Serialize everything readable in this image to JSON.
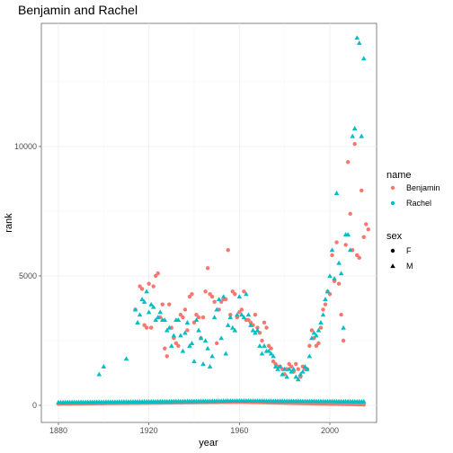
{
  "chart_data": {
    "type": "scatter",
    "title": "Benjamin and Rachel",
    "xlabel": "year",
    "ylabel": "rank",
    "xlim": [
      1873,
      1908
    ],
    "ylim": [
      -700,
      14500
    ],
    "x_ticks": [
      1880,
      1920,
      1960,
      2000
    ],
    "y_ticks": [
      0,
      5000,
      10000
    ],
    "grid": true,
    "colors": {
      "Benjamin": "#F8766D",
      "Rachel": "#00BFC4"
    },
    "legend_placement": "right",
    "legend": {
      "color_title": "name",
      "color_entries": [
        "Benjamin",
        "Rachel"
      ],
      "shape_title": "sex",
      "shape_entries": [
        {
          "label": "F",
          "shape": "circle"
        },
        {
          "label": "M",
          "shape": "triangle"
        }
      ]
    },
    "baseline_series": [
      {
        "name": "Benjamin",
        "sex": "F",
        "shape": "circle",
        "range": [
          1880,
          2015
        ],
        "rank_start": 60,
        "rank_peak": 130,
        "rank_end": 30
      },
      {
        "name": "Rachel",
        "sex": "M",
        "shape": "triangle",
        "range": [
          1880,
          2015
        ],
        "rank_start": 120,
        "rank_peak": 180,
        "rank_end": 150
      }
    ],
    "series": [
      {
        "name": "Benjamin",
        "sex": "M",
        "shape": "circle",
        "points": [
          [
            1914,
            3700
          ],
          [
            1916,
            4600
          ],
          [
            1917,
            4500
          ],
          [
            1918,
            3100
          ],
          [
            1919,
            3000
          ],
          [
            1920,
            4700
          ],
          [
            1921,
            3000
          ],
          [
            1922,
            4600
          ],
          [
            1923,
            5000
          ],
          [
            1924,
            5100
          ],
          [
            1925,
            3400
          ],
          [
            1926,
            3900
          ],
          [
            1927,
            2200
          ],
          [
            1928,
            1900
          ],
          [
            1929,
            3900
          ],
          [
            1930,
            3000
          ],
          [
            1931,
            2600
          ],
          [
            1932,
            2400
          ],
          [
            1933,
            2300
          ],
          [
            1934,
            3500
          ],
          [
            1935,
            3400
          ],
          [
            1936,
            3700
          ],
          [
            1937,
            2900
          ],
          [
            1938,
            4200
          ],
          [
            1939,
            4300
          ],
          [
            1940,
            3200
          ],
          [
            1941,
            3500
          ],
          [
            1942,
            3400
          ],
          [
            1943,
            2600
          ],
          [
            1944,
            3400
          ],
          [
            1945,
            4400
          ],
          [
            1946,
            5300
          ],
          [
            1947,
            4300
          ],
          [
            1948,
            4200
          ],
          [
            1949,
            4000
          ],
          [
            1950,
            2400
          ],
          [
            1951,
            3700
          ],
          [
            1952,
            4000
          ],
          [
            1953,
            4100
          ],
          [
            1954,
            4100
          ],
          [
            1955,
            6000
          ],
          [
            1956,
            3500
          ],
          [
            1957,
            4400
          ],
          [
            1958,
            4300
          ],
          [
            1959,
            3400
          ],
          [
            1960,
            3600
          ],
          [
            1961,
            3700
          ],
          [
            1962,
            4400
          ],
          [
            1963,
            3300
          ],
          [
            1964,
            3300
          ],
          [
            1965,
            3200
          ],
          [
            1966,
            3100
          ],
          [
            1967,
            3500
          ],
          [
            1968,
            3000
          ],
          [
            1969,
            2800
          ],
          [
            1970,
            2500
          ],
          [
            1971,
            3200
          ],
          [
            1972,
            3000
          ],
          [
            1973,
            2300
          ],
          [
            1974,
            2200
          ],
          [
            1975,
            1700
          ],
          [
            1976,
            1600
          ],
          [
            1977,
            1500
          ],
          [
            1978,
            1500
          ],
          [
            1979,
            1400
          ],
          [
            1980,
            1200
          ],
          [
            1981,
            1400
          ],
          [
            1982,
            1600
          ],
          [
            1983,
            1500
          ],
          [
            1984,
            1300
          ],
          [
            1985,
            1600
          ],
          [
            1986,
            1400
          ],
          [
            1987,
            1100
          ],
          [
            1988,
            1500
          ],
          [
            1989,
            1400
          ],
          [
            1990,
            1400
          ],
          [
            1991,
            2300
          ],
          [
            1992,
            2900
          ],
          [
            1993,
            2600
          ],
          [
            1994,
            2300
          ],
          [
            1995,
            2400
          ],
          [
            1996,
            3000
          ],
          [
            1997,
            3700
          ],
          [
            1998,
            3900
          ],
          [
            1999,
            4400
          ],
          [
            2000,
            4300
          ],
          [
            2001,
            5800
          ],
          [
            2002,
            4800
          ],
          [
            2003,
            6300
          ],
          [
            2004,
            4700
          ],
          [
            2005,
            3500
          ],
          [
            2006,
            2500
          ],
          [
            2007,
            6200
          ],
          [
            2008,
            9400
          ],
          [
            2009,
            7400
          ],
          [
            2010,
            6000
          ],
          [
            2011,
            10100
          ],
          [
            2012,
            5800
          ],
          [
            2013,
            5700
          ],
          [
            2014,
            8300
          ],
          [
            2015,
            6500
          ],
          [
            2016,
            7000
          ],
          [
            2017,
            6800
          ]
        ]
      },
      {
        "name": "Rachel",
        "sex": "M",
        "shape": "triangle",
        "points": [
          [
            1898,
            1200
          ],
          [
            1900,
            1500
          ],
          [
            1910,
            1800
          ],
          [
            1914,
            3700
          ],
          [
            1915,
            3200
          ],
          [
            1916,
            3500
          ],
          [
            1917,
            4100
          ],
          [
            1918,
            4000
          ],
          [
            1919,
            4400
          ],
          [
            1920,
            3600
          ],
          [
            1921,
            3900
          ],
          [
            1922,
            3800
          ],
          [
            1923,
            3300
          ],
          [
            1924,
            3400
          ],
          [
            1925,
            3600
          ],
          [
            1926,
            3300
          ],
          [
            1927,
            3300
          ],
          [
            1928,
            2900
          ],
          [
            1929,
            3000
          ],
          [
            1930,
            2300
          ],
          [
            1931,
            2700
          ],
          [
            1932,
            3300
          ],
          [
            1933,
            3300
          ],
          [
            1934,
            2700
          ],
          [
            1935,
            2100
          ],
          [
            1936,
            2800
          ],
          [
            1937,
            3200
          ],
          [
            1938,
            2300
          ],
          [
            1939,
            2400
          ],
          [
            1940,
            1700
          ],
          [
            1941,
            3300
          ],
          [
            1942,
            2900
          ],
          [
            1943,
            2600
          ],
          [
            1944,
            1600
          ],
          [
            1945,
            2500
          ],
          [
            1946,
            2200
          ],
          [
            1947,
            1500
          ],
          [
            1948,
            1900
          ],
          [
            1949,
            3400
          ],
          [
            1950,
            3700
          ],
          [
            1951,
            4100
          ],
          [
            1952,
            2600
          ],
          [
            1953,
            4200
          ],
          [
            1954,
            2000
          ],
          [
            1955,
            3100
          ],
          [
            1956,
            3400
          ],
          [
            1957,
            3000
          ],
          [
            1958,
            2900
          ],
          [
            1959,
            3500
          ],
          [
            1960,
            4200
          ],
          [
            1961,
            3500
          ],
          [
            1962,
            3400
          ],
          [
            1963,
            4300
          ],
          [
            1964,
            3500
          ],
          [
            1965,
            3100
          ],
          [
            1966,
            2900
          ],
          [
            1967,
            2800
          ],
          [
            1968,
            2900
          ],
          [
            1969,
            2300
          ],
          [
            1970,
            2000
          ],
          [
            1971,
            2300
          ],
          [
            1972,
            2100
          ],
          [
            1973,
            2100
          ],
          [
            1974,
            2000
          ],
          [
            1975,
            1900
          ],
          [
            1976,
            1500
          ],
          [
            1977,
            1400
          ],
          [
            1978,
            1500
          ],
          [
            1979,
            1200
          ],
          [
            1980,
            1400
          ],
          [
            1981,
            1100
          ],
          [
            1982,
            1400
          ],
          [
            1983,
            1300
          ],
          [
            1984,
            1400
          ],
          [
            1985,
            1100
          ],
          [
            1986,
            1000
          ],
          [
            1987,
            1200
          ],
          [
            1988,
            1300
          ],
          [
            1989,
            1500
          ],
          [
            1990,
            1400
          ],
          [
            1991,
            1900
          ],
          [
            1992,
            2600
          ],
          [
            1993,
            2800
          ],
          [
            1994,
            2700
          ],
          [
            1995,
            2900
          ],
          [
            1996,
            3200
          ],
          [
            1997,
            3500
          ],
          [
            1998,
            4100
          ],
          [
            1999,
            4400
          ],
          [
            2000,
            5000
          ],
          [
            2001,
            6000
          ],
          [
            2002,
            4900
          ],
          [
            2003,
            8200
          ],
          [
            2004,
            5500
          ],
          [
            2005,
            5100
          ],
          [
            2006,
            3000
          ],
          [
            2007,
            6600
          ],
          [
            2008,
            6600
          ],
          [
            2009,
            6000
          ],
          [
            2010,
            10400
          ],
          [
            2011,
            10700
          ],
          [
            2012,
            14200
          ],
          [
            2013,
            14000
          ],
          [
            2014,
            10400
          ],
          [
            2015,
            13400
          ]
        ]
      }
    ]
  }
}
